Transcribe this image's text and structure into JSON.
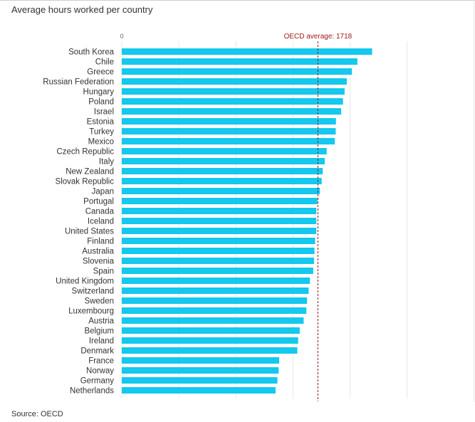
{
  "title": "Average hours worked per country",
  "source": "Source: OECD",
  "colors": {
    "bar": "#14c8ee",
    "average_line": "#8b1a1a",
    "average_label": "#a01818",
    "grid": "#e8e8e8"
  },
  "chart_data": {
    "type": "bar",
    "orientation": "horizontal",
    "title": "Average hours worked per country",
    "x_tick_labels": [
      "0"
    ],
    "xlim": [
      0,
      2500
    ],
    "grid": true,
    "reference_line": {
      "label": "OECD average: 1718",
      "value": 1718
    },
    "categories": [
      "South Korea",
      "Chile",
      "Greece",
      "Russian Federation",
      "Hungary",
      "Poland",
      "Israel",
      "Estonia",
      "Turkey",
      "Mexico",
      "Czech Republic",
      "Italy",
      "New Zealand",
      "Slovak Republic",
      "Japan",
      "Portugal",
      "Canada",
      "Iceland",
      "United States",
      "Finland",
      "Australia",
      "Slovenia",
      "Spain",
      "United Kingdom",
      "Switzerland",
      "Sweden",
      "Luxembourg",
      "Austria",
      "Belgium",
      "Ireland",
      "Denmark",
      "France",
      "Norway",
      "Germany",
      "Netherlands"
    ],
    "values": [
      2193,
      2064,
      2016,
      1971,
      1952,
      1938,
      1922,
      1876,
      1874,
      1866,
      1795,
      1778,
      1760,
      1751,
      1735,
      1714,
      1704,
      1704,
      1704,
      1694,
      1688,
      1684,
      1677,
      1648,
      1637,
      1623,
      1617,
      1593,
      1559,
      1545,
      1538,
      1379,
      1374,
      1363,
      1347
    ]
  }
}
